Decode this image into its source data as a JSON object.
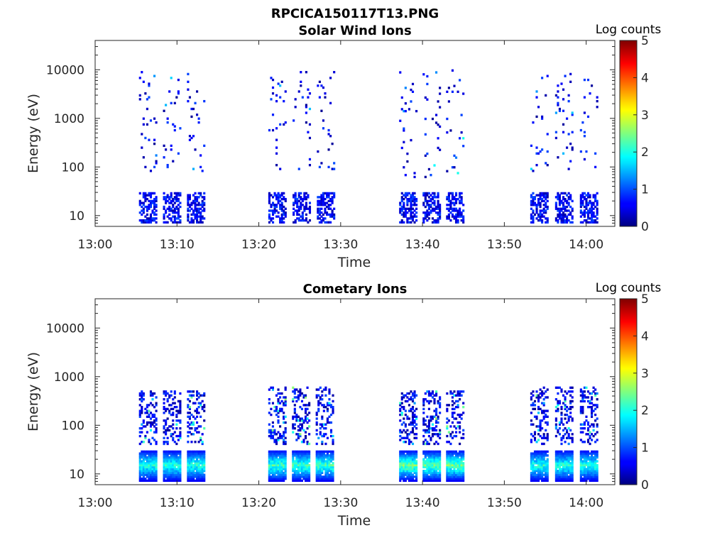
{
  "figure": {
    "title": "RPCICA150117T13.PNG"
  },
  "colorbar": {
    "label": "Log counts",
    "ticks": [
      "0",
      "1",
      "2",
      "3",
      "4",
      "5"
    ],
    "range": [
      0,
      5
    ]
  },
  "chart_data": [
    {
      "type": "heatmap",
      "title": "Solar Wind Ions",
      "xlabel": "Time",
      "ylabel": "Energy (eV)",
      "x_ticks": [
        "13:00",
        "13:10",
        "13:20",
        "13:30",
        "13:40",
        "13:50",
        "14:00"
      ],
      "y_ticks": [
        "10",
        "100",
        "1000",
        "10000"
      ],
      "y_scale": "log",
      "xlim_minutes": [
        0,
        63.5
      ],
      "ylim_eV": [
        6,
        40000
      ],
      "bursts": [
        {
          "t_start": 5.0,
          "t_end": 13.8,
          "low_band_eV": [
            7,
            30
          ],
          "scatter_eV": [
            80,
            9000
          ],
          "peak_log": 1.8
        },
        {
          "t_start": 20.8,
          "t_end": 29.7,
          "low_band_eV": [
            7,
            30
          ],
          "scatter_eV": [
            80,
            10000
          ],
          "peak_log": 1.6
        },
        {
          "t_start": 36.8,
          "t_end": 45.4,
          "low_band_eV": [
            7,
            30
          ],
          "scatter_eV": [
            60,
            10000
          ],
          "peak_log": 2.1
        },
        {
          "t_start": 52.8,
          "t_end": 61.9,
          "low_band_eV": [
            7,
            30
          ],
          "scatter_eV": [
            80,
            9000
          ],
          "peak_log": 1.8
        }
      ]
    },
    {
      "type": "heatmap",
      "title": "Cometary Ions",
      "xlabel": "Time",
      "ylabel": "Energy (eV)",
      "x_ticks": [
        "13:00",
        "13:10",
        "13:20",
        "13:30",
        "13:40",
        "13:50",
        "14:00"
      ],
      "y_ticks": [
        "10",
        "100",
        "1000",
        "10000"
      ],
      "y_scale": "log",
      "xlim_minutes": [
        0,
        63.5
      ],
      "ylim_eV": [
        6,
        40000
      ],
      "bursts": [
        {
          "t_start": 5.0,
          "t_end": 13.8,
          "low_band_eV": [
            7,
            30
          ],
          "scatter_eV": [
            40,
            500
          ],
          "peak_log": 2.4
        },
        {
          "t_start": 20.8,
          "t_end": 29.5,
          "low_band_eV": [
            7,
            30
          ],
          "scatter_eV": [
            40,
            600
          ],
          "peak_log": 2.6
        },
        {
          "t_start": 36.8,
          "t_end": 45.4,
          "low_band_eV": [
            7,
            30
          ],
          "scatter_eV": [
            40,
            500
          ],
          "peak_log": 2.8
        },
        {
          "t_start": 52.8,
          "t_end": 61.9,
          "low_band_eV": [
            7,
            30
          ],
          "scatter_eV": [
            40,
            600
          ],
          "peak_log": 2.4
        }
      ]
    }
  ]
}
